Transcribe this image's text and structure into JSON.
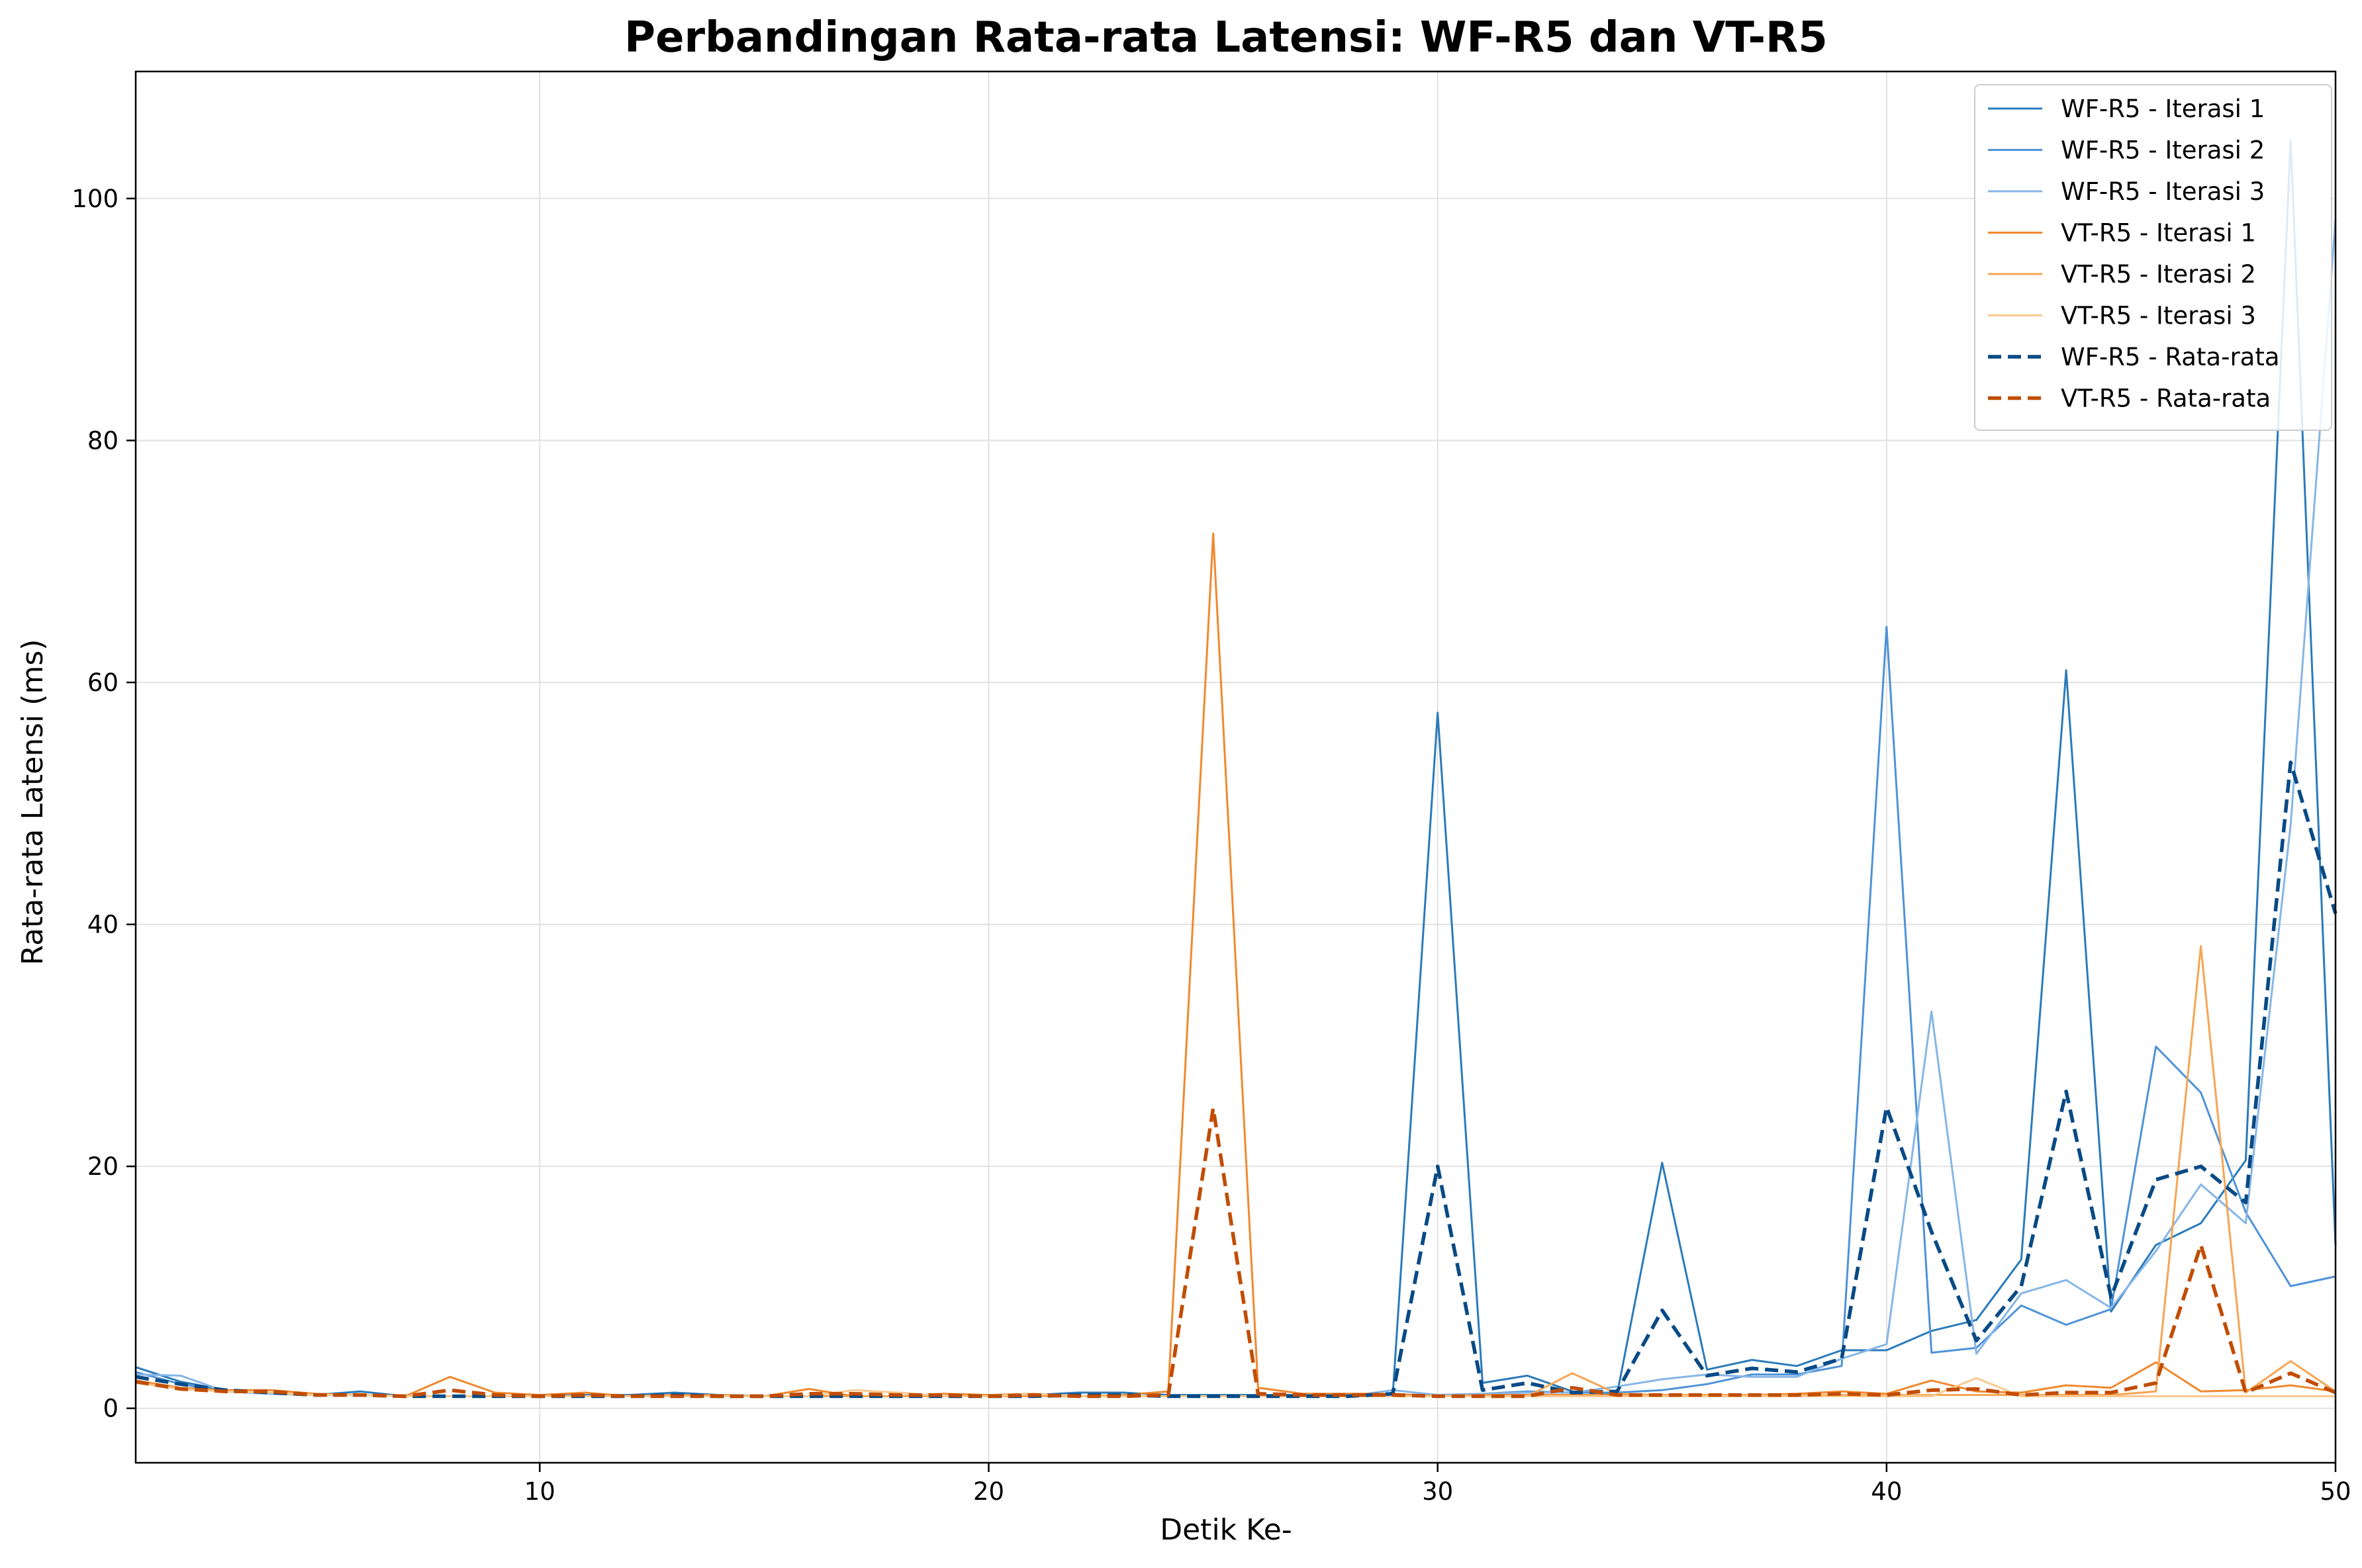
{
  "chart_data": {
    "type": "line",
    "title": "Perbandingan Rata-rata Latensi: WF-R5 dan VT-R5",
    "xlabel": "Detik Ke-",
    "ylabel": "Rata-rata Latensi (ms)",
    "xlim": [
      1,
      50
    ],
    "ylim": [
      -4.5,
      110.5
    ],
    "x_ticks": [
      10,
      20,
      30,
      40,
      50
    ],
    "y_ticks": [
      0,
      20,
      40,
      60,
      80,
      100
    ],
    "grid": true,
    "legend_position": "top-right",
    "x": [
      1,
      2,
      3,
      4,
      5,
      6,
      7,
      8,
      9,
      10,
      11,
      12,
      13,
      14,
      15,
      16,
      17,
      18,
      19,
      20,
      21,
      22,
      23,
      24,
      25,
      26,
      27,
      28,
      29,
      30,
      31,
      32,
      33,
      34,
      35,
      36,
      37,
      38,
      39,
      40,
      41,
      42,
      43,
      44,
      45,
      46,
      47,
      48,
      49,
      50
    ],
    "series": [
      {
        "name": "WF-R5 - Iterasi 1",
        "color": "#2b7bba",
        "style": "solid",
        "width": 3,
        "values": [
          3.4,
          2.2,
          1.5,
          1.3,
          1.1,
          1.4,
          1.0,
          1.0,
          1.0,
          1.0,
          1.1,
          1.1,
          1.3,
          1.1,
          1.0,
          1.0,
          1.0,
          1.0,
          1.0,
          1.1,
          1.1,
          1.3,
          1.3,
          1.1,
          1.1,
          1.1,
          1.1,
          1.1,
          1.1,
          57.5,
          2.1,
          2.7,
          1.4,
          1.2,
          20.3,
          3.2,
          4.0,
          3.5,
          4.8,
          4.8,
          6.4,
          7.3,
          12.3,
          61.0,
          8.0,
          13.5,
          15.3,
          20.5,
          104.8,
          13.5
        ]
      },
      {
        "name": "WF-R5 - Iterasi 2",
        "color": "#4f93d8",
        "style": "solid",
        "width": 3,
        "values": [
          3.0,
          2.0,
          1.4,
          1.2,
          1.1,
          1.1,
          1.0,
          1.0,
          1.0,
          1.0,
          1.0,
          1.0,
          1.0,
          1.0,
          1.0,
          1.0,
          1.0,
          1.0,
          1.0,
          1.0,
          1.0,
          1.0,
          1.0,
          1.0,
          1.0,
          1.0,
          1.0,
          1.0,
          1.1,
          1.1,
          1.2,
          1.4,
          1.3,
          1.3,
          1.5,
          2.0,
          2.8,
          2.8,
          3.5,
          64.6,
          4.6,
          5.0,
          8.5,
          6.9,
          8.2,
          29.9,
          26.1,
          16.2,
          10.1,
          10.9
        ]
      },
      {
        "name": "WF-R5 - Iterasi 3",
        "color": "#86b6e6",
        "style": "solid",
        "width": 3,
        "values": [
          2.8,
          2.7,
          1.4,
          1.2,
          1.1,
          1.1,
          1.0,
          1.0,
          1.0,
          1.0,
          1.0,
          1.0,
          1.0,
          1.0,
          1.0,
          1.0,
          1.0,
          1.0,
          1.0,
          1.0,
          1.0,
          1.0,
          1.0,
          1.0,
          1.0,
          1.0,
          1.0,
          1.0,
          1.5,
          1.1,
          1.2,
          1.3,
          1.3,
          1.8,
          2.4,
          2.8,
          2.6,
          2.6,
          4.1,
          5.3,
          32.8,
          4.5,
          9.5,
          10.6,
          8.3,
          13.0,
          18.5,
          15.3,
          48.2,
          98.3
        ]
      },
      {
        "name": "VT-R5 - Iterasi 1",
        "color": "#f0892f",
        "style": "solid",
        "width": 3,
        "values": [
          2.3,
          1.7,
          1.5,
          1.5,
          1.2,
          1.1,
          1.0,
          2.6,
          1.3,
          1.1,
          1.3,
          1.0,
          1.1,
          1.1,
          1.0,
          1.6,
          1.0,
          1.0,
          1.2,
          1.1,
          1.2,
          1.0,
          1.1,
          1.4,
          72.3,
          1.7,
          1.2,
          1.2,
          1.2,
          1.0,
          1.1,
          1.1,
          1.1,
          1.1,
          1.1,
          1.1,
          1.1,
          1.2,
          1.4,
          1.2,
          2.3,
          1.4,
          1.3,
          1.9,
          1.7,
          3.8,
          1.4,
          1.5,
          1.9,
          1.4
        ]
      },
      {
        "name": "VT-R5 - Iterasi 2",
        "color": "#f7a553",
        "style": "solid",
        "width": 3,
        "values": [
          2.2,
          1.6,
          1.4,
          1.3,
          1.1,
          1.1,
          1.0,
          1.0,
          1.0,
          1.0,
          1.0,
          1.0,
          1.0,
          1.0,
          1.0,
          1.0,
          1.0,
          1.0,
          1.0,
          1.0,
          1.0,
          1.0,
          1.0,
          1.0,
          1.0,
          1.0,
          1.0,
          1.0,
          1.0,
          1.0,
          1.0,
          1.0,
          2.9,
          1.2,
          1.1,
          1.1,
          1.1,
          1.1,
          1.1,
          1.1,
          1.1,
          1.1,
          1.1,
          1.1,
          1.1,
          1.4,
          38.2,
          1.3,
          3.9,
          1.4
        ]
      },
      {
        "name": "VT-R5 - Iterasi 3",
        "color": "#fcc98f",
        "style": "solid",
        "width": 3,
        "values": [
          2.1,
          1.6,
          1.4,
          1.3,
          1.1,
          1.1,
          1.0,
          1.0,
          1.0,
          1.0,
          1.0,
          1.0,
          1.0,
          1.0,
          1.0,
          1.0,
          1.5,
          1.3,
          1.0,
          1.0,
          1.2,
          1.0,
          1.0,
          1.0,
          1.0,
          1.0,
          1.0,
          1.0,
          1.0,
          1.0,
          1.0,
          1.0,
          1.0,
          1.0,
          1.0,
          1.0,
          1.0,
          1.0,
          1.0,
          1.0,
          1.0,
          2.5,
          1.0,
          1.0,
          1.0,
          1.0,
          1.0,
          1.0,
          1.0,
          1.0
        ]
      },
      {
        "name": "WF-R5 - Rata-rata",
        "color": "#084a85",
        "style": "dashed",
        "width": 5.5,
        "values": [
          2.6,
          2.0,
          1.5,
          1.3,
          1.1,
          1.1,
          1.0,
          1.0,
          1.0,
          1.0,
          1.0,
          1.0,
          1.1,
          1.0,
          1.0,
          1.0,
          1.0,
          1.0,
          1.0,
          1.0,
          1.0,
          1.1,
          1.1,
          1.0,
          1.0,
          1.0,
          1.0,
          1.0,
          1.2,
          20.0,
          1.5,
          2.1,
          1.3,
          1.4,
          8.1,
          2.7,
          3.3,
          3.0,
          4.1,
          24.9,
          14.6,
          5.6,
          10.1,
          26.2,
          9.2,
          18.9,
          20.0,
          17.0,
          53.4,
          40.9
        ]
      },
      {
        "name": "VT-R5 - Rata-rata",
        "color": "#c14d05",
        "style": "dashed",
        "width": 5.5,
        "values": [
          2.2,
          1.6,
          1.4,
          1.4,
          1.1,
          1.1,
          1.0,
          1.5,
          1.1,
          1.0,
          1.1,
          1.0,
          1.0,
          1.0,
          1.0,
          1.2,
          1.2,
          1.1,
          1.1,
          1.0,
          1.1,
          1.0,
          1.0,
          1.1,
          24.8,
          1.2,
          1.1,
          1.1,
          1.1,
          1.0,
          1.0,
          1.0,
          1.7,
          1.1,
          1.1,
          1.1,
          1.1,
          1.1,
          1.2,
          1.1,
          1.5,
          1.6,
          1.1,
          1.3,
          1.3,
          2.1,
          13.5,
          1.3,
          2.9,
          1.3
        ]
      }
    ]
  }
}
